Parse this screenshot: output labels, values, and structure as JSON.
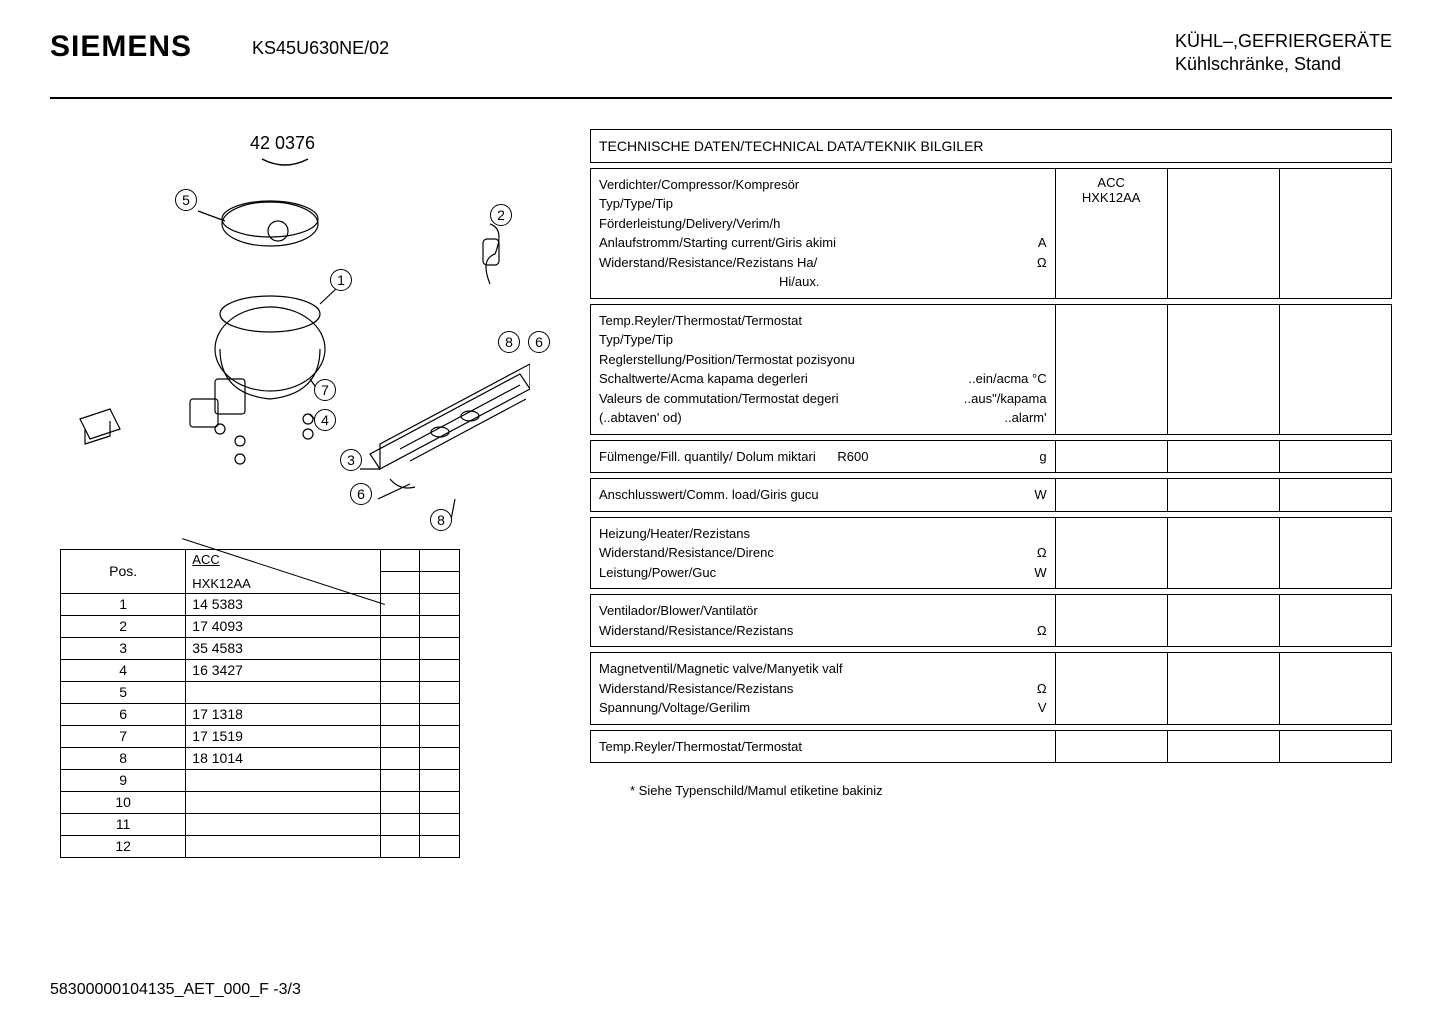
{
  "header": {
    "brand": "SIEMENS",
    "model": "KS45U630NE/02",
    "title_line1": "KÜHL–,GEFRIERGERÄTE",
    "title_line2": "Kühlschränke, Stand"
  },
  "diagram": {
    "part_number": "42 0376",
    "callouts": [
      "1",
      "2",
      "3",
      "4",
      "5",
      "6",
      "7",
      "8"
    ]
  },
  "parts_table": {
    "pos_header": "Pos.",
    "acc_label": "ACC",
    "model_label": "HXK12AA",
    "rows": [
      {
        "pos": "1",
        "val": "14 5383"
      },
      {
        "pos": "2",
        "val": "17 4093"
      },
      {
        "pos": "3",
        "val": "35 4583"
      },
      {
        "pos": "4",
        "val": "16 3427"
      },
      {
        "pos": "5",
        "val": ""
      },
      {
        "pos": "6",
        "val": "17 1318"
      },
      {
        "pos": "7",
        "val": "17 1519"
      },
      {
        "pos": "8",
        "val": "18 1014"
      },
      {
        "pos": "9",
        "val": ""
      },
      {
        "pos": "10",
        "val": ""
      },
      {
        "pos": "11",
        "val": ""
      },
      {
        "pos": "12",
        "val": ""
      }
    ]
  },
  "tech_data": {
    "title": "TECHNISCHE DATEN/TECHNICAL DATA/TEKNIK BILGILER",
    "compressor": {
      "l1": "Verdichter/Compressor/Kompresör",
      "l2": "Typ/Type/Tip",
      "l3": "Förderleistung/Delivery/Verim/h",
      "l4": "Anlaufstromm/Starting current/Giris akimi",
      "l4u": "A",
      "l5": "Widerstand/Resistance/Rezistans Ha/",
      "l5u": "Ω",
      "l6": "Hi/aux.",
      "val1": "ACC",
      "val2": "HXK12AA"
    },
    "thermostat": {
      "l1": "Temp.Reyler/Thermostat/Termostat",
      "l2": "Typ/Type/Tip",
      "l3": "Reglerstellung/Position/Termostat  pozisyonu",
      "l4": "Schaltwerte/Acma kapama degerleri",
      "l4r": "..ein/acma °C",
      "l5": "Valeurs de commutation/Termostat degeri",
      "l5r": "..aus\"/kapama",
      "l6": "(..abtaven' od)",
      "l6r": "..alarm'"
    },
    "fill": {
      "label": "Fülmenge/Fill. quantily/ Dolum miktari",
      "type": "R600",
      "unit": "g"
    },
    "comm_load": {
      "label": "Anschlusswert/Comm. load/Giris gucu",
      "unit": "W"
    },
    "heater": {
      "l1": "Heizung/Heater/Rezistans",
      "l2": "Widerstand/Resistance/Direnc",
      "l2u": "Ω",
      "l3": "Leistung/Power/Guc",
      "l3u": "W"
    },
    "blower": {
      "l1": "Ventilador/Blower/Vantilatör",
      "l2": "Widerstand/Resistance/Rezistans",
      "l2u": "Ω"
    },
    "valve": {
      "l1": "Magnetventil/Magnetic valve/Manyetik valf",
      "l2": "Widerstand/Resistance/Rezistans",
      "l2u": "Ω",
      "l3": "Spannung/Voltage/Gerilim",
      "l3u": "V"
    },
    "thermostat2": {
      "l1": "Temp.Reyler/Thermostat/Termostat"
    },
    "footnote": "* Siehe Typenschild/Mamul etiketine bakiniz"
  },
  "footer": "58300000104135_AET_000_F  -3/3"
}
